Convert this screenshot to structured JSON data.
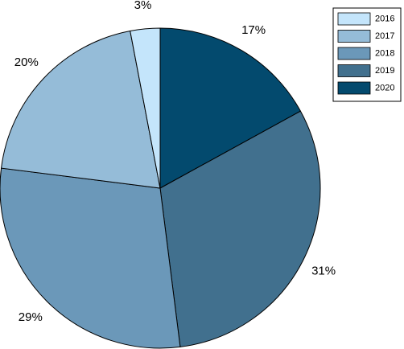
{
  "chart_data": {
    "type": "pie",
    "title": "",
    "start_angle_deg": 0,
    "direction": "clockwise",
    "legend_placement": "top-right",
    "slices": [
      {
        "label": "2020",
        "value": 17,
        "display": "17%",
        "color": "#034a6e"
      },
      {
        "label": "2019",
        "value": 31,
        "display": "31%",
        "color": "#41708e"
      },
      {
        "label": "2018",
        "value": 29,
        "display": "29%",
        "color": "#6b98b9"
      },
      {
        "label": "2017",
        "value": 20,
        "display": "20%",
        "color": "#95bcd8"
      },
      {
        "label": "2016",
        "value": 3,
        "display": "3%",
        "color": "#c4e5fb"
      }
    ],
    "legend": [
      {
        "label": "2016",
        "color": "#c4e5fb"
      },
      {
        "label": "2017",
        "color": "#95bcd8"
      },
      {
        "label": "2018",
        "color": "#6b98b9"
      },
      {
        "label": "2019",
        "color": "#41708e"
      },
      {
        "label": "2020",
        "color": "#034a6e"
      }
    ]
  }
}
